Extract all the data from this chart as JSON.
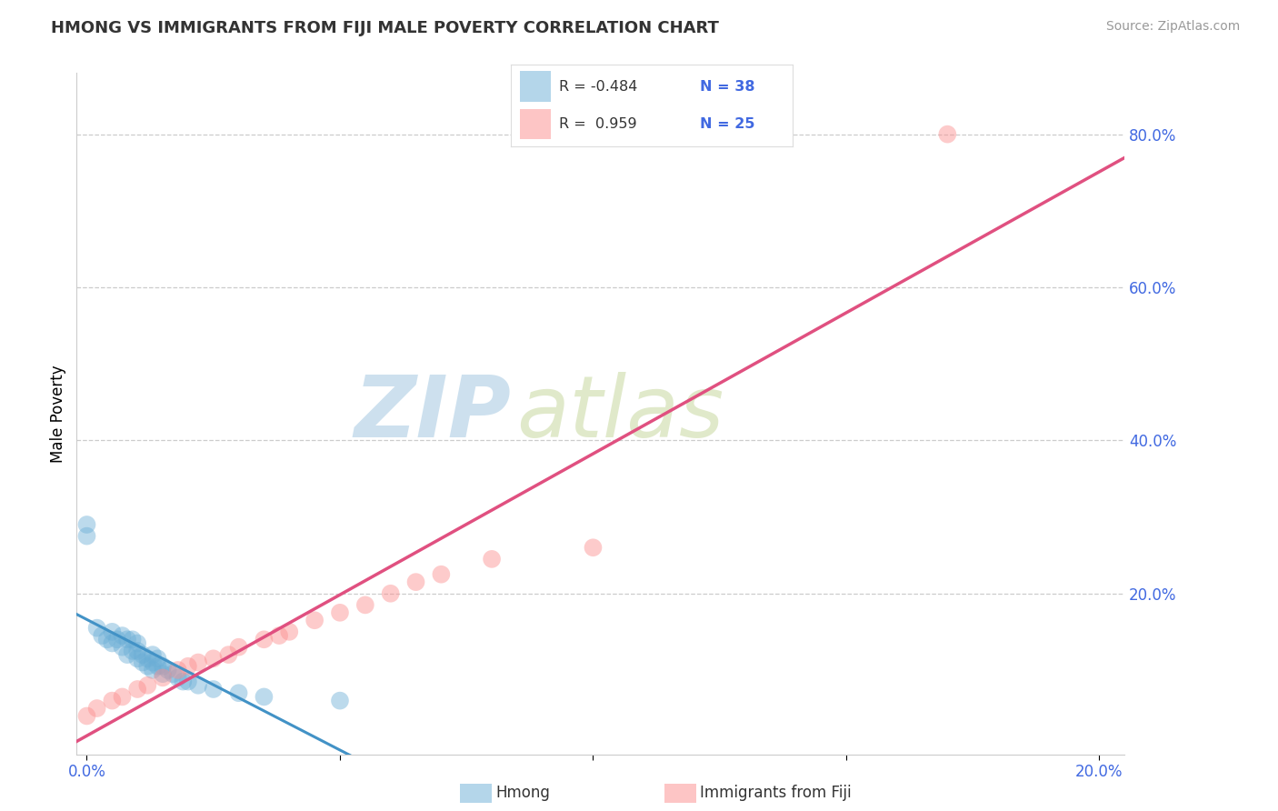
{
  "title": "HMONG VS IMMIGRANTS FROM FIJI MALE POVERTY CORRELATION CHART",
  "source": "Source: ZipAtlas.com",
  "xlabel_blue": "Hmong",
  "xlabel_pink": "Immigrants from Fiji",
  "ylabel": "Male Poverty",
  "xlim": [
    -0.002,
    0.205
  ],
  "ylim": [
    -0.01,
    0.88
  ],
  "x_ticks": [
    0.0,
    0.05,
    0.1,
    0.15,
    0.2
  ],
  "x_tick_labels": [
    "0.0%",
    "",
    "",
    "",
    "20.0%"
  ],
  "y_ticks": [
    0.0,
    0.2,
    0.4,
    0.6,
    0.8
  ],
  "y_tick_labels": [
    "",
    "20.0%",
    "40.0%",
    "60.0%",
    "80.0%"
  ],
  "blue_R": -0.484,
  "blue_N": 38,
  "pink_R": 0.959,
  "pink_N": 25,
  "blue_color": "#6baed6",
  "pink_color": "#fc8d8d",
  "blue_line_color": "#4292c6",
  "pink_line_color": "#e05080",
  "watermark_zip": "ZIP",
  "watermark_atlas": "atlas",
  "grid_color": "#cccccc",
  "blue_scatter_x": [
    0.0,
    0.0,
    0.002,
    0.003,
    0.004,
    0.005,
    0.005,
    0.006,
    0.007,
    0.007,
    0.008,
    0.008,
    0.009,
    0.009,
    0.01,
    0.01,
    0.01,
    0.011,
    0.011,
    0.012,
    0.012,
    0.013,
    0.013,
    0.013,
    0.014,
    0.014,
    0.015,
    0.015,
    0.016,
    0.017,
    0.018,
    0.019,
    0.02,
    0.022,
    0.025,
    0.03,
    0.035,
    0.05
  ],
  "blue_scatter_y": [
    0.275,
    0.29,
    0.155,
    0.145,
    0.14,
    0.135,
    0.15,
    0.14,
    0.13,
    0.145,
    0.12,
    0.14,
    0.125,
    0.14,
    0.115,
    0.125,
    0.135,
    0.11,
    0.12,
    0.105,
    0.115,
    0.1,
    0.11,
    0.12,
    0.105,
    0.115,
    0.095,
    0.105,
    0.1,
    0.095,
    0.09,
    0.085,
    0.085,
    0.08,
    0.075,
    0.07,
    0.065,
    0.06
  ],
  "pink_scatter_x": [
    0.0,
    0.002,
    0.005,
    0.007,
    0.01,
    0.012,
    0.015,
    0.018,
    0.02,
    0.022,
    0.025,
    0.028,
    0.03,
    0.035,
    0.038,
    0.04,
    0.045,
    0.05,
    0.055,
    0.06,
    0.065,
    0.07,
    0.08,
    0.1,
    0.17
  ],
  "pink_scatter_y": [
    0.04,
    0.05,
    0.06,
    0.065,
    0.075,
    0.08,
    0.09,
    0.1,
    0.105,
    0.11,
    0.115,
    0.12,
    0.13,
    0.14,
    0.145,
    0.15,
    0.165,
    0.175,
    0.185,
    0.2,
    0.215,
    0.225,
    0.245,
    0.26,
    0.8
  ],
  "blue_line_x0": -0.002,
  "blue_line_x1": 0.07,
  "pink_line_x0": -0.002,
  "pink_line_x1": 0.205,
  "title_fontsize": 13,
  "tick_fontsize": 12,
  "ylabel_fontsize": 12
}
